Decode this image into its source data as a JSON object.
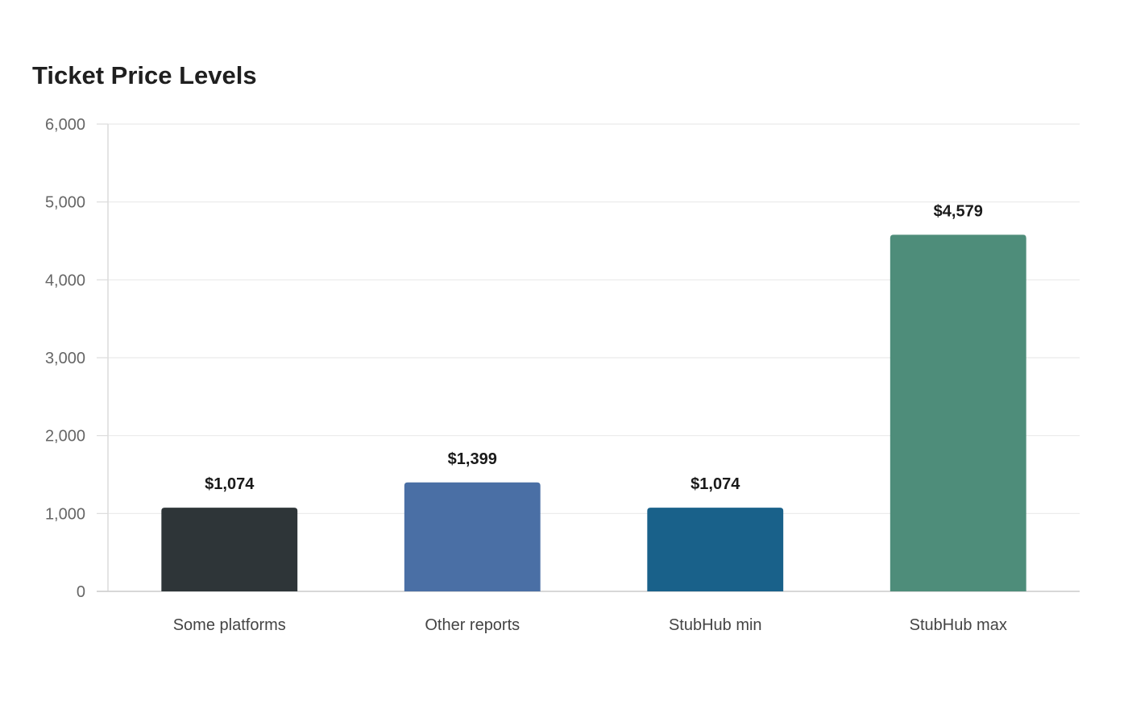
{
  "chart_data": {
    "type": "bar",
    "title": "Ticket Price Levels",
    "xlabel": "",
    "ylabel": "",
    "categories": [
      "Some platforms",
      "Other reports",
      "StubHub min",
      "StubHub max"
    ],
    "values": [
      1074,
      1399,
      1074,
      4579
    ],
    "value_labels": [
      "$1,074",
      "$1,399",
      "$1,074",
      "$4,579"
    ],
    "colors": [
      "#2e3538",
      "#4a6fa5",
      "#19618a",
      "#4e8d7a"
    ],
    "ylim": [
      0,
      6000
    ],
    "yticks": [
      0,
      1000,
      2000,
      3000,
      4000,
      5000,
      6000
    ],
    "ytick_labels": [
      "0",
      "1,000",
      "2,000",
      "3,000",
      "4,000",
      "5,000",
      "6,000"
    ],
    "grid": true,
    "legend": "none"
  }
}
